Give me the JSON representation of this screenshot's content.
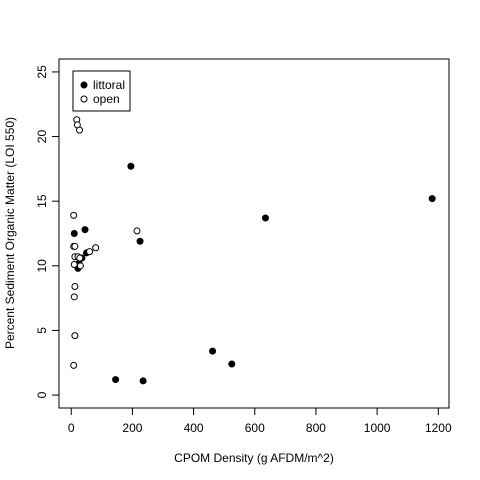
{
  "chart_data": {
    "type": "scatter",
    "xlabel": "CPOM Density (g AFDM/m^2)",
    "ylabel": "Percent Sediment Organic Matter (LOI 550)",
    "xlim": [
      -40,
      1235
    ],
    "ylim": [
      -1.0,
      26.0
    ],
    "xticks": [
      0,
      200,
      400,
      600,
      800,
      1000,
      1200
    ],
    "yticks": [
      0,
      5,
      10,
      15,
      20,
      25
    ],
    "grid": false,
    "legend_position": "top-left",
    "series": [
      {
        "name": "littoral",
        "marker": "filled-circle",
        "color": "#000000",
        "points": [
          [
            195,
            17.7
          ],
          [
            1180,
            15.2
          ],
          [
            635,
            13.7
          ],
          [
            45,
            12.8
          ],
          [
            10,
            12.5
          ],
          [
            225,
            11.9
          ],
          [
            50,
            11.0
          ],
          [
            35,
            10.6
          ],
          [
            25,
            10.2
          ],
          [
            20,
            10.1
          ],
          [
            22,
            9.8
          ],
          [
            462,
            3.4
          ],
          [
            525,
            2.4
          ],
          [
            145,
            1.2
          ],
          [
            235,
            1.1
          ]
        ]
      },
      {
        "name": "open",
        "marker": "open-circle",
        "color": "#000000",
        "points": [
          [
            15,
            22.3
          ],
          [
            18,
            21.3
          ],
          [
            20,
            20.9
          ],
          [
            27,
            20.5
          ],
          [
            8,
            13.9
          ],
          [
            215,
            12.7
          ],
          [
            8,
            11.5
          ],
          [
            12,
            11.5
          ],
          [
            80,
            11.4
          ],
          [
            60,
            11.1
          ],
          [
            12,
            10.7
          ],
          [
            22,
            10.7
          ],
          [
            28,
            10.6
          ],
          [
            10,
            10.1
          ],
          [
            30,
            10.0
          ],
          [
            12,
            8.4
          ],
          [
            10,
            7.6
          ],
          [
            12,
            4.6
          ],
          [
            8,
            2.3
          ]
        ]
      }
    ]
  }
}
